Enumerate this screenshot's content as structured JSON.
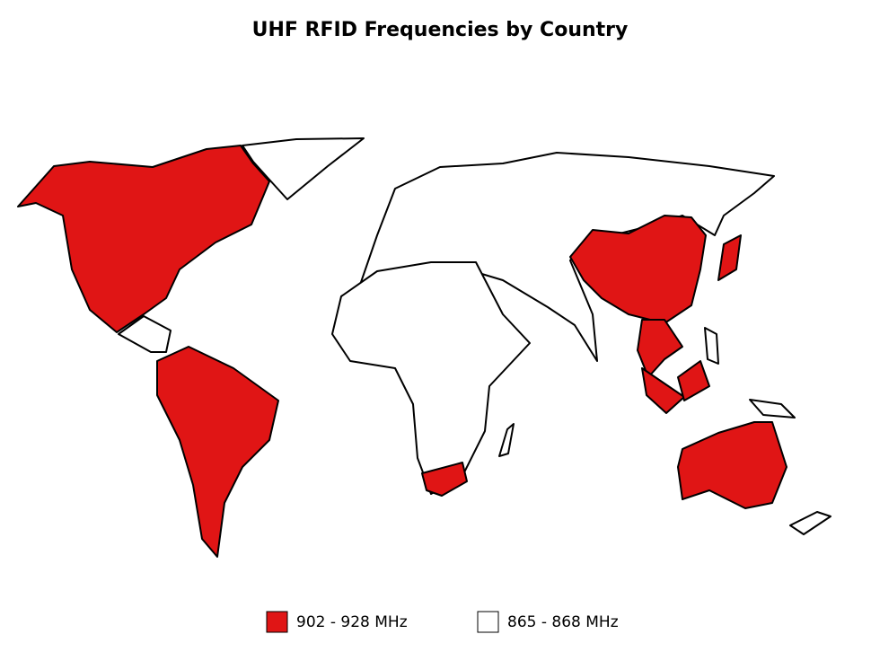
{
  "title": "UHF RFID Frequencies by Country",
  "legend": [
    {
      "label": "902 - 928 MHz",
      "color": "#e01515"
    },
    {
      "label": "865 - 868 MHz",
      "color": "#ffffff"
    }
  ]
}
